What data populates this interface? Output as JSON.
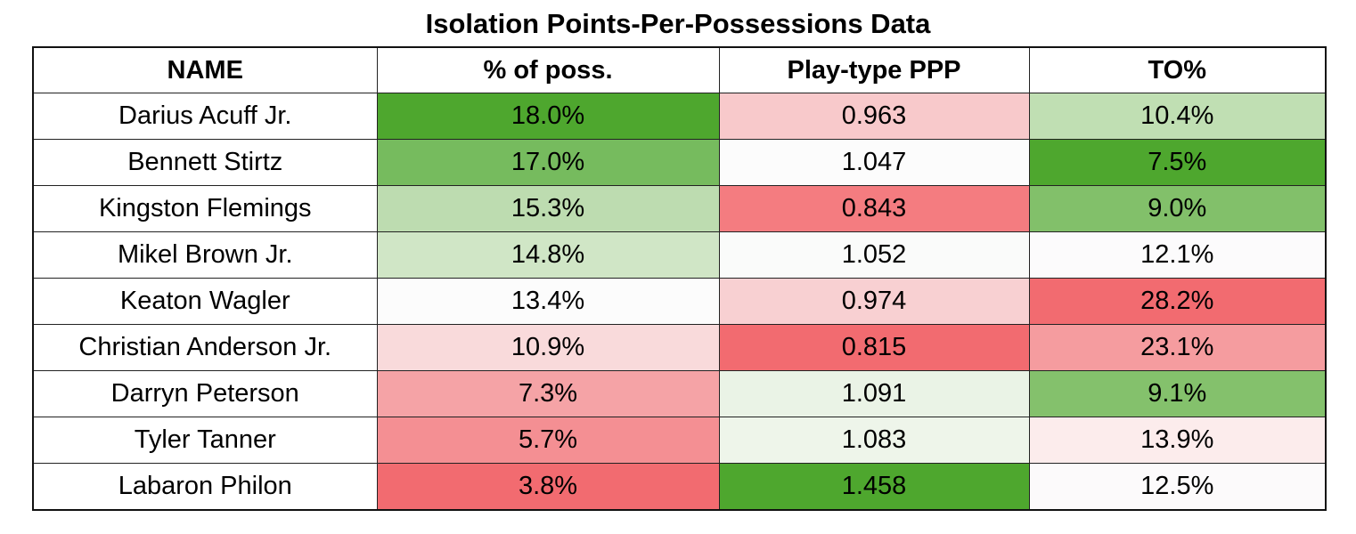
{
  "title": "Isolation Points-Per-Possessions Data",
  "chart_data": {
    "type": "table",
    "title": "Isolation Points-Per-Possessions Data",
    "columns": [
      "NAME",
      "% of poss.",
      "Play-type PPP",
      "TO%"
    ],
    "rows": [
      {
        "name": "Darius Acuff Jr.",
        "poss": "18.0%",
        "ppp": "0.963",
        "to": "10.4%",
        "colors": {
          "poss": "#4ea72e",
          "ppp": "#f8c9cb",
          "to": "#c0dfb3"
        }
      },
      {
        "name": "Bennett Stirtz",
        "poss": "17.0%",
        "ppp": "1.047",
        "to": "7.5%",
        "colors": {
          "poss": "#76bb5e",
          "ppp": "#fcfcfc",
          "to": "#4ea72e"
        }
      },
      {
        "name": "Kingston Flemings",
        "poss": "15.3%",
        "ppp": "0.843",
        "to": "9.0%",
        "colors": {
          "poss": "#bddcb0",
          "ppp": "#f47c80",
          "to": "#82c06a"
        }
      },
      {
        "name": "Mikel Brown Jr.",
        "poss": "14.8%",
        "ppp": "1.052",
        "to": "12.1%",
        "colors": {
          "poss": "#d0e6c6",
          "ppp": "#fafbfa",
          "to": "#fcfbfc"
        }
      },
      {
        "name": "Keaton Wagler",
        "poss": "13.4%",
        "ppp": "0.974",
        "to": "28.2%",
        "colors": {
          "poss": "#fcfcfc",
          "ppp": "#f8d0d2",
          "to": "#f26b70"
        }
      },
      {
        "name": "Christian Anderson Jr.",
        "poss": "10.9%",
        "ppp": "0.815",
        "to": "23.1%",
        "colors": {
          "poss": "#f9dadb",
          "ppp": "#f26b70",
          "to": "#f59c9f"
        }
      },
      {
        "name": "Darryn Peterson",
        "poss": "7.3%",
        "ppp": "1.091",
        "to": "9.1%",
        "colors": {
          "poss": "#f5a3a6",
          "ppp": "#eaf3e6",
          "to": "#84c16c"
        }
      },
      {
        "name": "Tyler Tanner",
        "poss": "5.7%",
        "ppp": "1.083",
        "to": "13.9%",
        "colors": {
          "poss": "#f48f93",
          "ppp": "#eef5ea",
          "to": "#fcecec"
        }
      },
      {
        "name": "Labaron Philon",
        "poss": "3.8%",
        "ppp": "1.458",
        "to": "12.5%",
        "colors": {
          "poss": "#f26b70",
          "ppp": "#4ea72e",
          "to": "#fcfafb"
        }
      }
    ]
  }
}
